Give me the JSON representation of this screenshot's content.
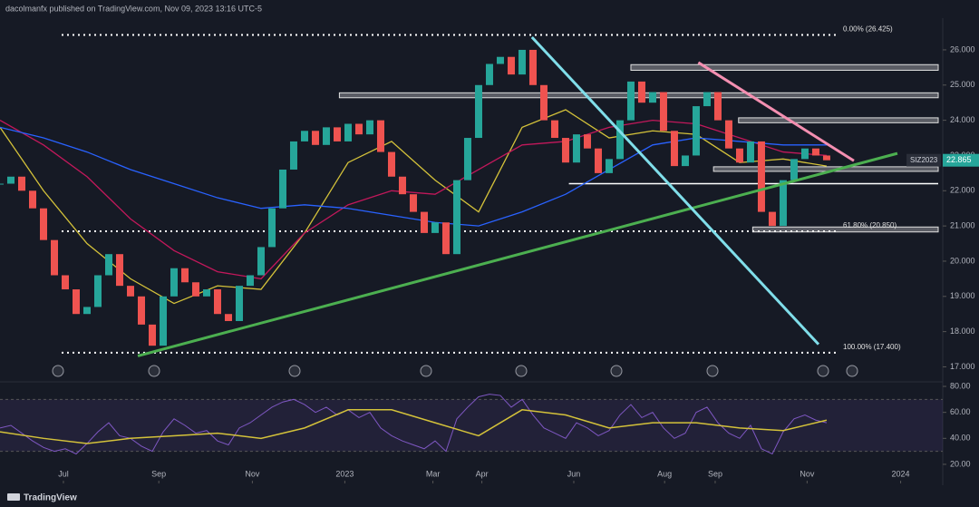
{
  "header": {
    "text": "dacolmanfx published on TradingView.com, Nov 09, 2023 13:16 UTC-5"
  },
  "footer": {
    "brand": "TradingView"
  },
  "chart_data": [
    {
      "type": "price",
      "symbol": "SIZ2023",
      "last_price": 22.865,
      "x": [
        0,
        1,
        2,
        3,
        4,
        5,
        6,
        7,
        8,
        9,
        10,
        11,
        12,
        13,
        14,
        15,
        16,
        17,
        18,
        19,
        20,
        21,
        22,
        23,
        24,
        25,
        26,
        27,
        28,
        29,
        30,
        31,
        32,
        33,
        34,
        35,
        36,
        37,
        38,
        39,
        40,
        41,
        42,
        43,
        44,
        45,
        46,
        47,
        48,
        49,
        50,
        51,
        52,
        53,
        54,
        55,
        56,
        57,
        58,
        59,
        60,
        61,
        62,
        63,
        64,
        65,
        66,
        67,
        68,
        69,
        70,
        71,
        72,
        73,
        74,
        75,
        76
      ],
      "values": [
        22.2,
        22.4,
        22.0,
        21.5,
        20.6,
        19.6,
        19.2,
        18.5,
        18.7,
        19.6,
        20.2,
        19.3,
        19.0,
        18.2,
        17.6,
        19.0,
        19.8,
        19.4,
        19.0,
        19.2,
        18.5,
        18.3,
        19.3,
        19.6,
        20.4,
        21.5,
        22.6,
        23.4,
        23.7,
        23.3,
        23.8,
        23.4,
        23.9,
        23.6,
        24.0,
        23.1,
        22.4,
        21.9,
        21.4,
        20.8,
        21.1,
        20.2,
        22.3,
        23.5,
        25.0,
        25.6,
        25.8,
        25.3,
        26.0,
        25.0,
        24.0,
        23.5,
        22.8,
        23.6,
        23.2,
        22.5,
        22.9,
        24.0,
        25.1,
        24.5,
        24.8,
        23.7,
        22.7,
        23.0,
        24.4,
        24.8,
        24.0,
        23.2,
        22.8,
        23.4,
        21.4,
        21.0,
        22.3,
        22.9,
        23.2,
        23.0,
        22.865
      ],
      "up_color": "#26a69a",
      "down_color": "#ef5350",
      "series": [
        {
          "color": "#d4c23a",
          "x": [
            0,
            4,
            8,
            12,
            16,
            20,
            24,
            28,
            32,
            36,
            40,
            44,
            48,
            52,
            56,
            60,
            64,
            68,
            72,
            76
          ],
          "values": [
            23.8,
            22.0,
            20.5,
            19.5,
            18.8,
            19.3,
            19.2,
            20.8,
            22.8,
            23.4,
            22.3,
            21.4,
            23.8,
            24.3,
            23.5,
            23.7,
            23.6,
            22.8,
            22.9,
            22.7
          ]
        },
        {
          "color": "#c2185b",
          "x": [
            0,
            4,
            8,
            12,
            16,
            20,
            24,
            28,
            32,
            36,
            40,
            44,
            48,
            52,
            56,
            60,
            64,
            68,
            72,
            76
          ],
          "values": [
            24.0,
            23.3,
            22.4,
            21.2,
            20.3,
            19.7,
            19.5,
            20.8,
            21.6,
            22.0,
            21.9,
            22.6,
            23.3,
            23.4,
            23.8,
            24.0,
            23.9,
            23.5,
            23.1,
            23.0
          ]
        },
        {
          "color": "#2962ff",
          "x": [
            0,
            4,
            8,
            12,
            16,
            20,
            24,
            28,
            32,
            36,
            40,
            44,
            48,
            52,
            56,
            60,
            64,
            68,
            72,
            76
          ],
          "values": [
            23.8,
            23.5,
            23.1,
            22.6,
            22.2,
            21.8,
            21.5,
            21.6,
            21.5,
            21.3,
            21.1,
            21.0,
            21.4,
            21.9,
            22.6,
            23.3,
            23.5,
            23.4,
            23.3,
            23.3
          ]
        }
      ],
      "levels": [
        {
          "value": 26.425,
          "label": "0.00% (26.425)"
        },
        {
          "value": 20.85,
          "label": "61.80% (20.850)"
        },
        {
          "value": 17.4,
          "label": "100.00% (17.400)"
        }
      ],
      "zones": [
        {
          "range": [
            25.42,
            25.58
          ],
          "x0": 58
        },
        {
          "range": [
            24.64,
            24.78
          ],
          "x0": 31.2
        },
        {
          "range": [
            23.93,
            24.07
          ],
          "x0": 67.9
        },
        {
          "range": [
            22.55,
            22.68
          ],
          "x0": 65.6
        },
        {
          "range": [
            20.83,
            20.97
          ],
          "x0": 69.2
        }
      ],
      "support": {
        "value": 22.2,
        "x0": 52.3
      },
      "trendlines": [
        {
          "color": "#4caf50",
          "x": [
            12.67,
            82.5
          ],
          "y": [
            17.31,
            23.06
          ]
        },
        {
          "color": "#80deea",
          "x": [
            48.9,
            75.25
          ],
          "y": [
            26.36,
            17.64
          ]
        },
        {
          "color": "#f48fb1",
          "x": [
            64.2,
            78.5
          ],
          "y": [
            25.64,
            22.85
          ]
        }
      ],
      "xlim": [
        0,
        86.67
      ],
      "ylim": [
        16.6,
        26.9
      ],
      "yticks": [
        {
          "value": 17,
          "label": "17.000"
        },
        {
          "value": 18,
          "label": "18.000"
        },
        {
          "value": 19,
          "label": "19.000"
        },
        {
          "value": 20,
          "label": "20.000"
        },
        {
          "value": 21,
          "label": "21.000"
        },
        {
          "value": 22,
          "label": "22.000"
        },
        {
          "value": 23,
          "label": "23.000"
        },
        {
          "value": 24,
          "label": "24.000"
        },
        {
          "value": 25,
          "label": "25.000"
        },
        {
          "value": 26,
          "label": "26.000"
        }
      ]
    },
    {
      "type": "line",
      "x": [
        0,
        1,
        2,
        3,
        4,
        5,
        6,
        7,
        8,
        9,
        10,
        11,
        12,
        13,
        14,
        15,
        16,
        17,
        18,
        19,
        20,
        21,
        22,
        23,
        24,
        25,
        26,
        27,
        28,
        29,
        30,
        31,
        32,
        33,
        34,
        35,
        36,
        37,
        38,
        39,
        40,
        41,
        42,
        43,
        44,
        45,
        46,
        47,
        48,
        49,
        50,
        51,
        52,
        53,
        54,
        55,
        56,
        57,
        58,
        59,
        60,
        61,
        62,
        63,
        64,
        65,
        66,
        67,
        68,
        69,
        70,
        71,
        72,
        73,
        74,
        75,
        76
      ],
      "series": [
        {
          "color": "#7e57c2",
          "x": [
            0,
            1,
            2,
            3,
            4,
            5,
            6,
            7,
            8,
            9,
            10,
            11,
            12,
            13,
            14,
            15,
            16,
            17,
            18,
            19,
            20,
            21,
            22,
            23,
            24,
            25,
            26,
            27,
            28,
            29,
            30,
            31,
            32,
            33,
            34,
            35,
            36,
            37,
            38,
            39,
            40,
            41,
            42,
            43,
            44,
            45,
            46,
            47,
            48,
            49,
            50,
            51,
            52,
            53,
            54,
            55,
            56,
            57,
            58,
            59,
            60,
            61,
            62,
            63,
            64,
            65,
            66,
            67,
            68,
            69,
            70,
            71,
            72,
            73,
            74,
            75,
            76
          ],
          "values": [
            48,
            50,
            44,
            38,
            33,
            30,
            32,
            28,
            36,
            45,
            52,
            42,
            40,
            34,
            30,
            45,
            55,
            50,
            44,
            46,
            38,
            35,
            48,
            52,
            58,
            64,
            68,
            70,
            66,
            60,
            64,
            58,
            62,
            56,
            60,
            48,
            42,
            38,
            35,
            32,
            38,
            30,
            55,
            64,
            72,
            74,
            73,
            64,
            70,
            58,
            48,
            44,
            40,
            52,
            48,
            42,
            46,
            58,
            66,
            56,
            60,
            48,
            40,
            44,
            60,
            64,
            52,
            44,
            40,
            50,
            32,
            28,
            45,
            55,
            58,
            54,
            52
          ]
        },
        {
          "color": "#d4c23a",
          "x": [
            0,
            4,
            8,
            12,
            16,
            20,
            24,
            28,
            32,
            36,
            40,
            44,
            48,
            52,
            56,
            60,
            64,
            68,
            72,
            76
          ],
          "values": [
            45,
            40,
            36,
            40,
            42,
            44,
            40,
            48,
            62,
            62,
            52,
            42,
            62,
            58,
            48,
            52,
            52,
            48,
            46,
            54
          ]
        }
      ],
      "band": [
        30,
        70
      ],
      "xlim": [
        0,
        86.67
      ],
      "ylim": [
        7.4,
        84.2
      ],
      "yticks": [
        {
          "value": 20,
          "label": "20.00"
        },
        {
          "value": 40,
          "label": "40.00"
        },
        {
          "value": 60,
          "label": "60.00"
        },
        {
          "value": 80,
          "label": "80.00"
        }
      ],
      "xticks": [
        {
          "value": 5.83,
          "label": "Jul"
        },
        {
          "value": 14.6,
          "label": "Sep"
        },
        {
          "value": 23.2,
          "label": "Nov"
        },
        {
          "value": 31.7,
          "label": "2023"
        },
        {
          "value": 39.8,
          "label": "Mar"
        },
        {
          "value": 44.3,
          "label": "Apr"
        },
        {
          "value": 52.75,
          "label": "Jun"
        },
        {
          "value": 61.1,
          "label": "Aug"
        },
        {
          "value": 65.75,
          "label": "Sep"
        },
        {
          "value": 74.2,
          "label": "Nov"
        },
        {
          "value": 82.8,
          "label": "2024"
        }
      ]
    }
  ]
}
